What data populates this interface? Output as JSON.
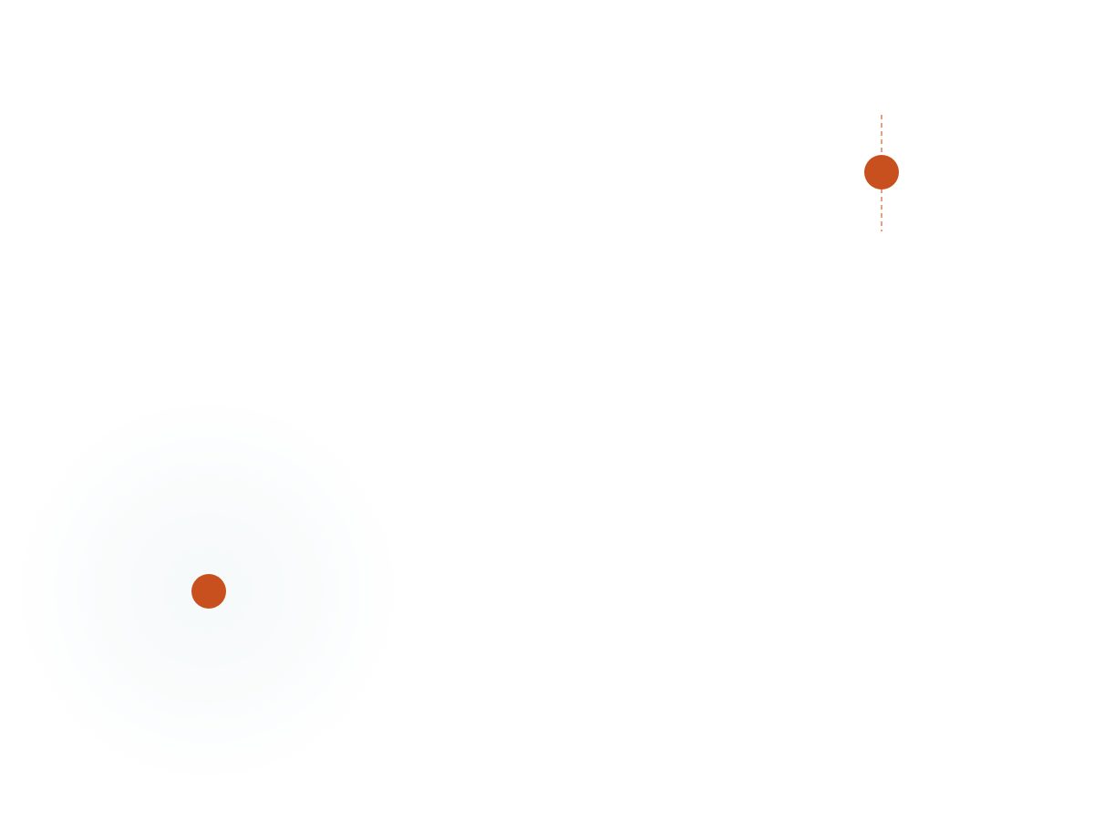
{
  "colors": {
    "background": "#ffffff",
    "accent": "#c8501e",
    "dashed_line": "#d9825a",
    "glow": "#eef4f6"
  },
  "elements": {
    "upper_marker": {
      "type": "dot-with-vertical-dashed-line"
    },
    "lower_marker": {
      "type": "dot-with-soft-radial-glow"
    }
  }
}
